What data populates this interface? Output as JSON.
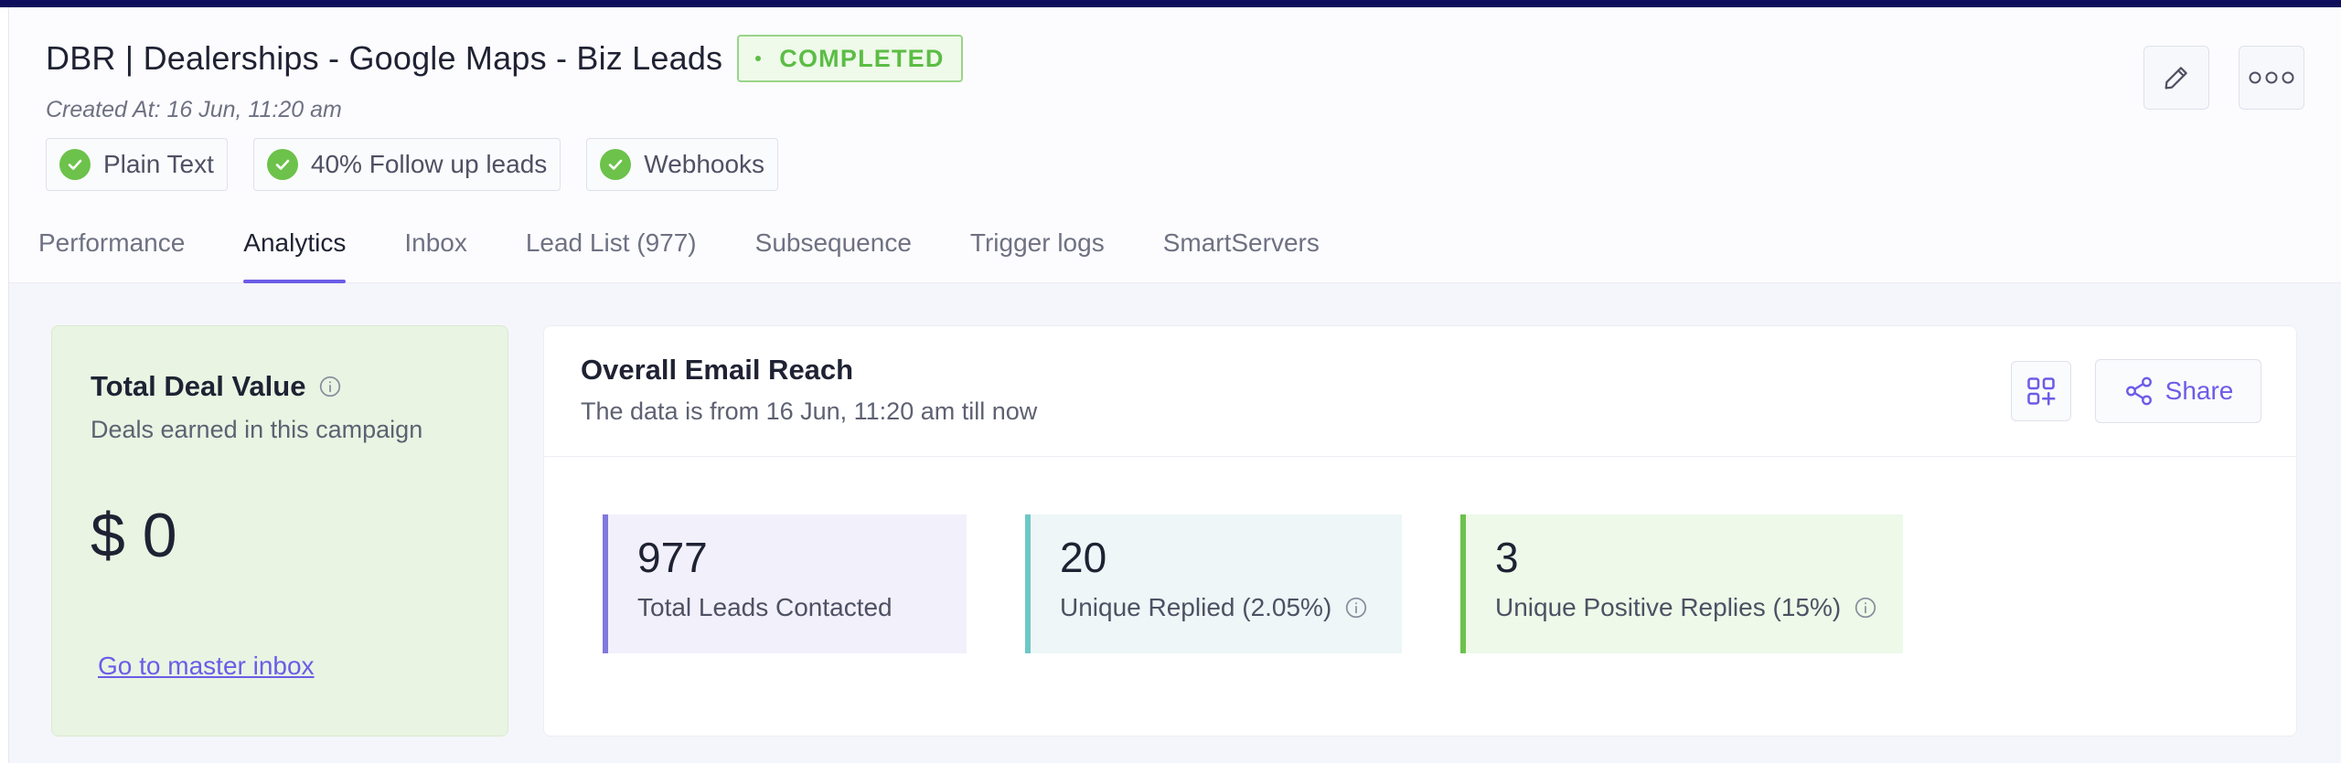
{
  "campaign": {
    "title": "DBR | Dealerships - Google Maps - Biz Leads",
    "status": "COMPLETED",
    "created_at": "Created At: 16 Jun, 11:20 am"
  },
  "chips": [
    {
      "label": "Plain Text"
    },
    {
      "label": "40% Follow up leads"
    },
    {
      "label": "Webhooks"
    }
  ],
  "tabs": [
    {
      "label": "Performance"
    },
    {
      "label": "Analytics"
    },
    {
      "label": "Inbox"
    },
    {
      "label": "Lead List (977)"
    },
    {
      "label": "Subsequence"
    },
    {
      "label": "Trigger logs"
    },
    {
      "label": "SmartServers"
    }
  ],
  "active_tab": "Analytics",
  "deal": {
    "title": "Total Deal Value",
    "subtitle": "Deals earned in this campaign",
    "value": "$ 0",
    "link": "Go to master inbox"
  },
  "reach": {
    "title": "Overall Email Reach",
    "subtitle": "The data is from 16 Jun, 11:20 am till now",
    "share_label": "Share",
    "stats": [
      {
        "value": "977",
        "label": "Total Leads Contacted",
        "color": "#8179dd"
      },
      {
        "value": "20",
        "label": "Unique Replied (2.05%)",
        "color": "#6cc8c6"
      },
      {
        "value": "3",
        "label": "Unique Positive Replies (15%)",
        "color": "#6cc24a"
      }
    ]
  },
  "colors": {
    "accent": "#6b5ce7",
    "success": "#5cbd45",
    "topbar": "#0d0f5c"
  }
}
